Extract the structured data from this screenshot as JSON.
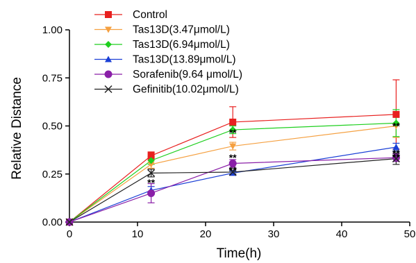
{
  "chart_data": {
    "type": "line",
    "xlabel": "Time(h)",
    "ylabel": "Relative Distance",
    "xlim": [
      0,
      50
    ],
    "ylim": [
      0,
      1.0
    ],
    "xticks": [
      "0",
      "10",
      "20",
      "30",
      "40",
      "50"
    ],
    "yticks": [
      "0.00",
      "0.25",
      "0.50",
      "0.75",
      "1.00"
    ],
    "grid": false,
    "legend_position": "top-left",
    "x": [
      0,
      12,
      24,
      48
    ],
    "series": [
      {
        "name": "Control",
        "color": "#e8201f",
        "marker": "square",
        "values": [
          0,
          0.345,
          0.52,
          0.56
        ],
        "errors": [
          0,
          0.02,
          0.08,
          0.18
        ]
      },
      {
        "name": "Tas13D(3.47μmol/L)",
        "color": "#f5a040",
        "marker": "triangle-down",
        "values": [
          0,
          0.3,
          0.395,
          0.5
        ],
        "errors": [
          0,
          0.02,
          0.02,
          0.06
        ]
      },
      {
        "name": "Tas13D(6.94μmol/L)",
        "color": "#1ecf1e",
        "marker": "diamond",
        "values": [
          0,
          0.32,
          0.48,
          0.515
        ],
        "errors": [
          0,
          0.02,
          0.02,
          0.07
        ]
      },
      {
        "name": "Tas13D(13.89μmol/L)",
        "color": "#1a3fd6",
        "marker": "triangle-up",
        "values": [
          0,
          0.165,
          0.255,
          0.39
        ],
        "errors": [
          0,
          0.02,
          0.01,
          0.02
        ]
      },
      {
        "name": "Sorafenib(9.64 μmol/L)",
        "color": "#8a1fa8",
        "marker": "circle",
        "values": [
          0,
          0.15,
          0.305,
          0.335
        ],
        "errors": [
          0,
          0.05,
          0.02,
          0.02
        ]
      },
      {
        "name": "Gefinitib(10.02μmol/L)",
        "color": "#222222",
        "marker": "x",
        "values": [
          0,
          0.255,
          0.26,
          0.33
        ],
        "errors": [
          0,
          0.02,
          0.01,
          0.03
        ]
      }
    ],
    "annotations": [
      {
        "text": "**",
        "x": 12,
        "y": 0.205
      },
      {
        "text": "**",
        "x": 24,
        "y": 0.465
      },
      {
        "text": "**",
        "x": 24,
        "y": 0.335
      },
      {
        "text": "**",
        "x": 24,
        "y": 0.27
      },
      {
        "text": "**",
        "x": 48,
        "y": 0.5
      },
      {
        "text": "**",
        "x": 48,
        "y": 0.36
      },
      {
        "text": "**",
        "x": 48,
        "y": 0.34
      }
    ]
  }
}
